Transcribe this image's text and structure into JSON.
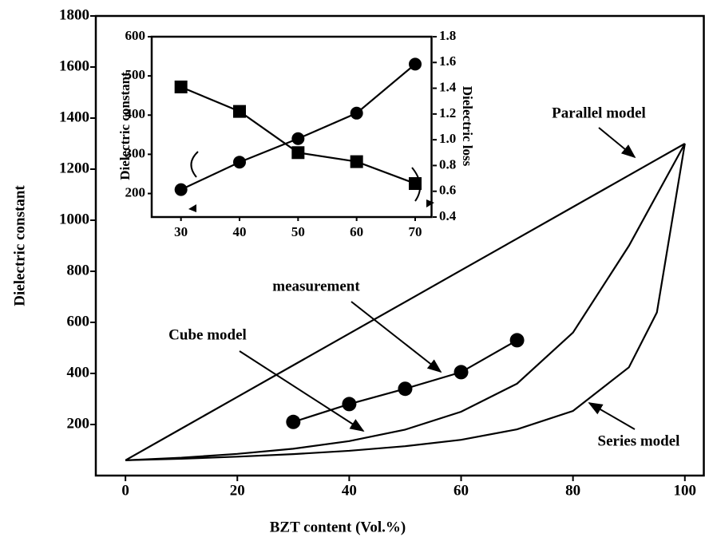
{
  "chart_data": [
    {
      "type": "line",
      "x_label": "BZT content (Vol.%)",
      "y_label": "Dielectric constant",
      "x": [
        0,
        10,
        20,
        30,
        40,
        50,
        60,
        70,
        80,
        90,
        95,
        100
      ],
      "series": [
        {
          "name": "Parallel model",
          "color": "#000000",
          "values": [
            60,
            184,
            308,
            432,
            556,
            680,
            804,
            928,
            1052,
            1176,
            1238,
            1300
          ]
        },
        {
          "name": "Cube model",
          "color": "#000000",
          "values": [
            60,
            70,
            85,
            105,
            135,
            180,
            250,
            360,
            560,
            900,
            1100,
            1300
          ]
        },
        {
          "name": "Series model",
          "color": "#000000",
          "values": [
            60,
            66,
            74,
            84,
            97,
            115,
            140,
            181,
            253,
            424,
            639,
            1300
          ]
        },
        {
          "name": "measurement",
          "color": "#000000",
          "marker": "circle",
          "values": [
            null,
            null,
            null,
            210,
            280,
            340,
            405,
            530,
            null,
            null,
            null,
            null
          ]
        }
      ],
      "xlim": [
        -5.3,
        103.6
      ],
      "ylim": [
        0,
        1800
      ],
      "xticks": [
        0,
        20,
        40,
        60,
        80,
        100
      ],
      "yticks": [
        200,
        400,
        600,
        800,
        1000,
        1200,
        1400,
        1600,
        1800
      ]
    },
    {
      "type": "line",
      "y_label": "Dielectric constant",
      "y2_label": "Dielectric loss",
      "x": [
        30,
        40,
        50,
        60,
        70
      ],
      "series": [
        {
          "color": "#000000",
          "marker": "circle",
          "values": [
            210,
            280,
            340,
            405,
            530
          ]
        },
        {
          "color": "#000000",
          "marker": "square",
          "axis": "y2",
          "values": [
            1.41,
            1.22,
            0.9,
            0.83,
            0.66
          ]
        }
      ],
      "xlim": [
        25,
        73
      ],
      "ylim": [
        140,
        600
      ],
      "y2lim": [
        0.4,
        1.8
      ],
      "xticks": [
        30,
        40,
        50,
        60,
        70
      ],
      "yticks": [
        200,
        300,
        400,
        500,
        600
      ],
      "y2ticks": [
        0.4,
        0.6,
        0.8,
        {
          "value": 1,
          "label": "1.0"
        },
        1.2,
        1.4,
        1.6,
        1.8
      ]
    }
  ]
}
